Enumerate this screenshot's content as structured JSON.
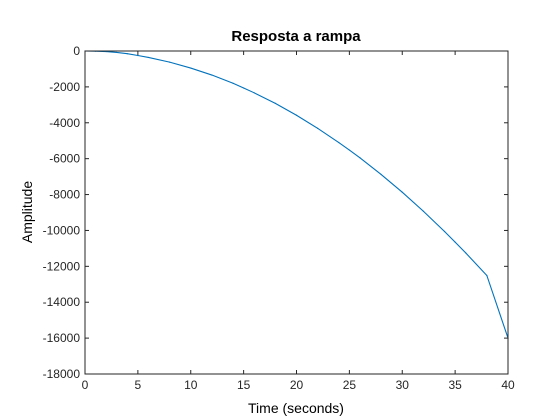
{
  "chart_data": {
    "type": "line",
    "title": "Resposta a rampa",
    "xlabel": "Time (seconds)",
    "ylabel": "Amplitude",
    "xlim": [
      0,
      40
    ],
    "ylim": [
      -18000,
      0
    ],
    "xticks": [
      0,
      5,
      10,
      15,
      20,
      25,
      30,
      35,
      40
    ],
    "yticks": [
      0,
      -2000,
      -4000,
      -6000,
      -8000,
      -10000,
      -12000,
      -14000,
      -16000,
      -18000
    ],
    "grid": false,
    "series": [
      {
        "color": "#0072BD",
        "x": [
          0,
          1,
          2,
          3,
          4,
          5,
          6,
          8,
          10,
          12,
          14,
          15,
          16,
          18,
          20,
          22,
          24,
          25,
          26,
          28,
          30,
          32,
          34,
          35,
          36,
          38,
          40
        ],
        "y": [
          0,
          -10,
          -30,
          -80,
          -150,
          -250,
          -360,
          -620,
          -950,
          -1340,
          -1800,
          -2060,
          -2330,
          -2920,
          -3580,
          -4310,
          -5100,
          -5520,
          -5950,
          -6880,
          -7870,
          -8930,
          -10060,
          -10650,
          -11250,
          -12510,
          -16000
        ]
      }
    ]
  }
}
